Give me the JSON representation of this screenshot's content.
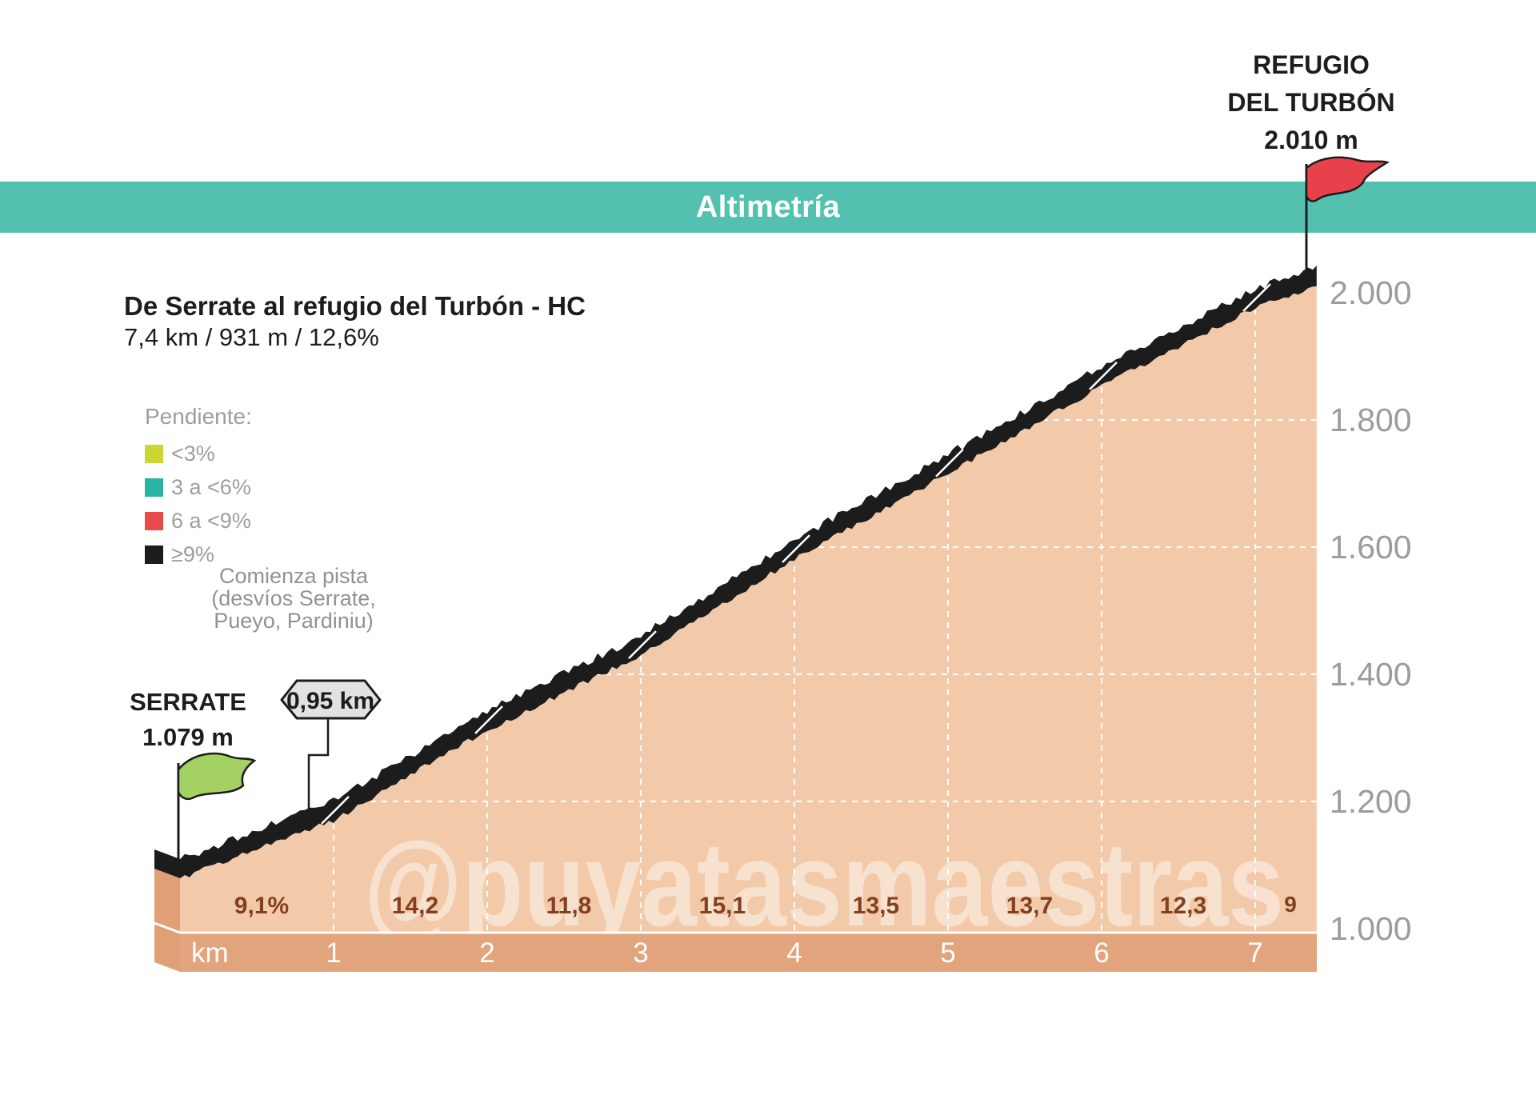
{
  "banner": {
    "title": "Altimetría",
    "color": "#54c1b0"
  },
  "summit_label": {
    "line1": "REFUGIO",
    "line2": "DEL TURBÓN",
    "line3": "2.010 m"
  },
  "start_label": {
    "line1": "SERRATE",
    "line2": "1.079 m"
  },
  "route": {
    "title": "De Serrate al refugio del Turbón - HC",
    "stats": "7,4 km / 931 m / 12,6%"
  },
  "legend": {
    "heading": "Pendiente:",
    "items": [
      {
        "label": "<3%",
        "color": "#ccd631"
      },
      {
        "label": "3 a <6%",
        "color": "#29b3a2"
      },
      {
        "label": "6 a <9%",
        "color": "#e8494b"
      },
      {
        "label": "≥9%",
        "color": "#1c1c1c"
      }
    ]
  },
  "annotation": {
    "lines": [
      "Comienza pista",
      "(desvíos Serrate,",
      "Pueyo, Pardiniu)"
    ],
    "badge": "0,95 km",
    "badge_km": 0.95
  },
  "watermark": "@puyatasmaestras",
  "chart_data": {
    "type": "area",
    "title": "Altimetría",
    "x_km": [
      0,
      1,
      2,
      3,
      4,
      5,
      6,
      7,
      7.4
    ],
    "elevation_m": [
      1079,
      1170,
      1312,
      1430,
      1581,
      1716,
      1853,
      1976,
      2010
    ],
    "segment_gradients_labels": [
      "9,1%",
      "14,2",
      "11,8",
      "15,1",
      "13,5",
      "13,7",
      "12,3",
      "9"
    ],
    "segment_gradients_pct": [
      9.1,
      14.2,
      11.8,
      15.1,
      13.5,
      13.7,
      12.3,
      9
    ],
    "x_axis_label": "km",
    "x_ticks": [
      1,
      2,
      3,
      4,
      5,
      6,
      7
    ],
    "y_ticks_labels": [
      "2.000",
      "1.800",
      "1.600",
      "1.400",
      "1.200",
      "1.000"
    ],
    "y_tick_values": [
      2000,
      1800,
      1600,
      1400,
      1200,
      1000
    ],
    "ylim": [
      1000,
      2050
    ],
    "length_km": 7.4,
    "gain_m": 931,
    "avg_gradient_pct": 12.6,
    "start": {
      "name": "SERRATE",
      "elevation_m": 1079
    },
    "end": {
      "name": "REFUGIO DEL TURBÓN",
      "elevation_m": 2010
    },
    "grid": "white-dashed",
    "legend_position": "upper-left",
    "colors": {
      "area_fill": "#f2c9a9",
      "gradient_band": "#1c1c1c",
      "axis_bar": "#e2a47c",
      "side_face": "#dfa077",
      "pct_text": "#843f20",
      "tick_text": "#9c9c9c",
      "km_text": "#ffffff",
      "start_flag": "#a3d164",
      "end_flag": "#e8414b",
      "badge_fill": "#e2e2e2"
    }
  }
}
